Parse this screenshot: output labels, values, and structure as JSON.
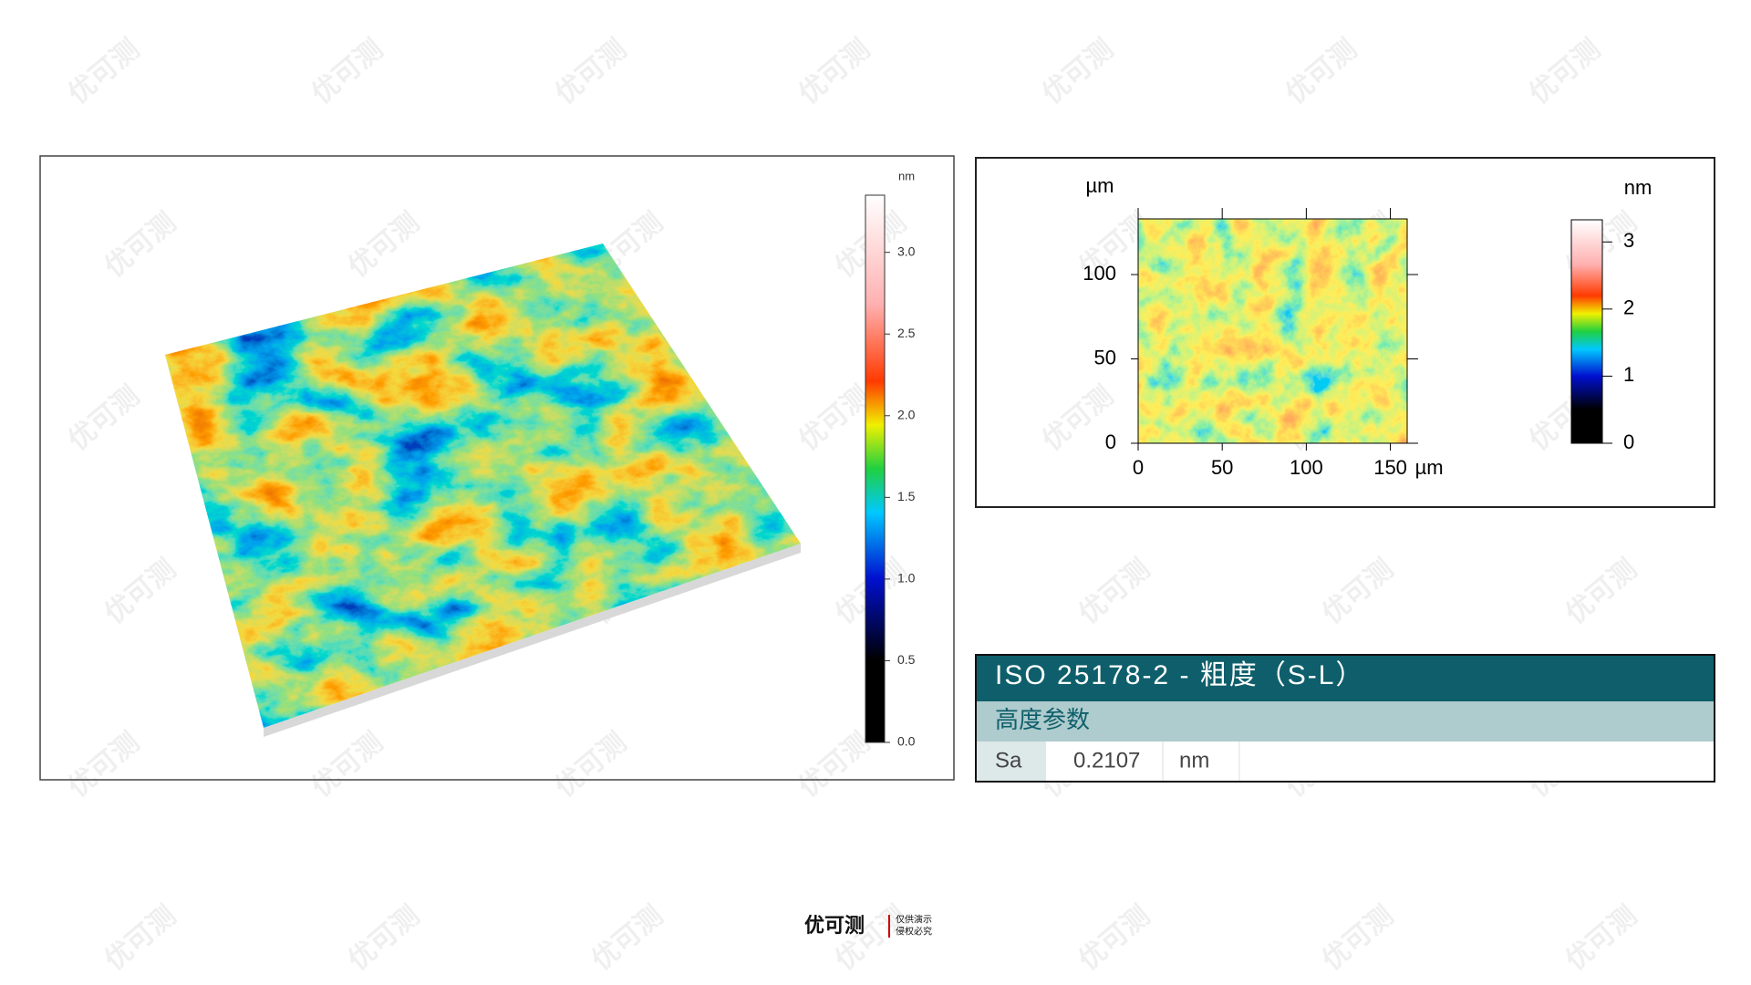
{
  "watermark": "优可测",
  "surface_3d": {
    "colorbar": {
      "unit": "nm",
      "lim": [
        0,
        3.35
      ],
      "ticks": [
        {
          "value": 0,
          "label": "0.0"
        },
        {
          "value": 0.5,
          "label": "0.5"
        },
        {
          "value": 1,
          "label": "1.0"
        },
        {
          "value": 1.5,
          "label": "1.5"
        },
        {
          "value": 2,
          "label": "2.0"
        },
        {
          "value": 2.5,
          "label": "2.5"
        },
        {
          "value": 3,
          "label": "3.0"
        }
      ]
    }
  },
  "height_map": {
    "x_unit": "µm",
    "y_unit": "µm",
    "xlim": [
      0,
      160
    ],
    "ylim": [
      0,
      133
    ],
    "xticks": [
      0,
      50,
      100,
      150
    ],
    "yticks": [
      0,
      50,
      100
    ],
    "colorbar": {
      "unit": "nm",
      "lim": [
        0,
        3.33
      ],
      "ticks": [
        0,
        1,
        2,
        3
      ]
    }
  },
  "table": {
    "title": "ISO 25178-2 - 粗度（S-L）",
    "section": "高度参数",
    "rows": [
      [
        "Sa",
        "0.2107",
        "nm"
      ]
    ]
  },
  "footer": {
    "logo": "优可测",
    "notice": [
      "仅供演示",
      "侵权必究"
    ]
  }
}
